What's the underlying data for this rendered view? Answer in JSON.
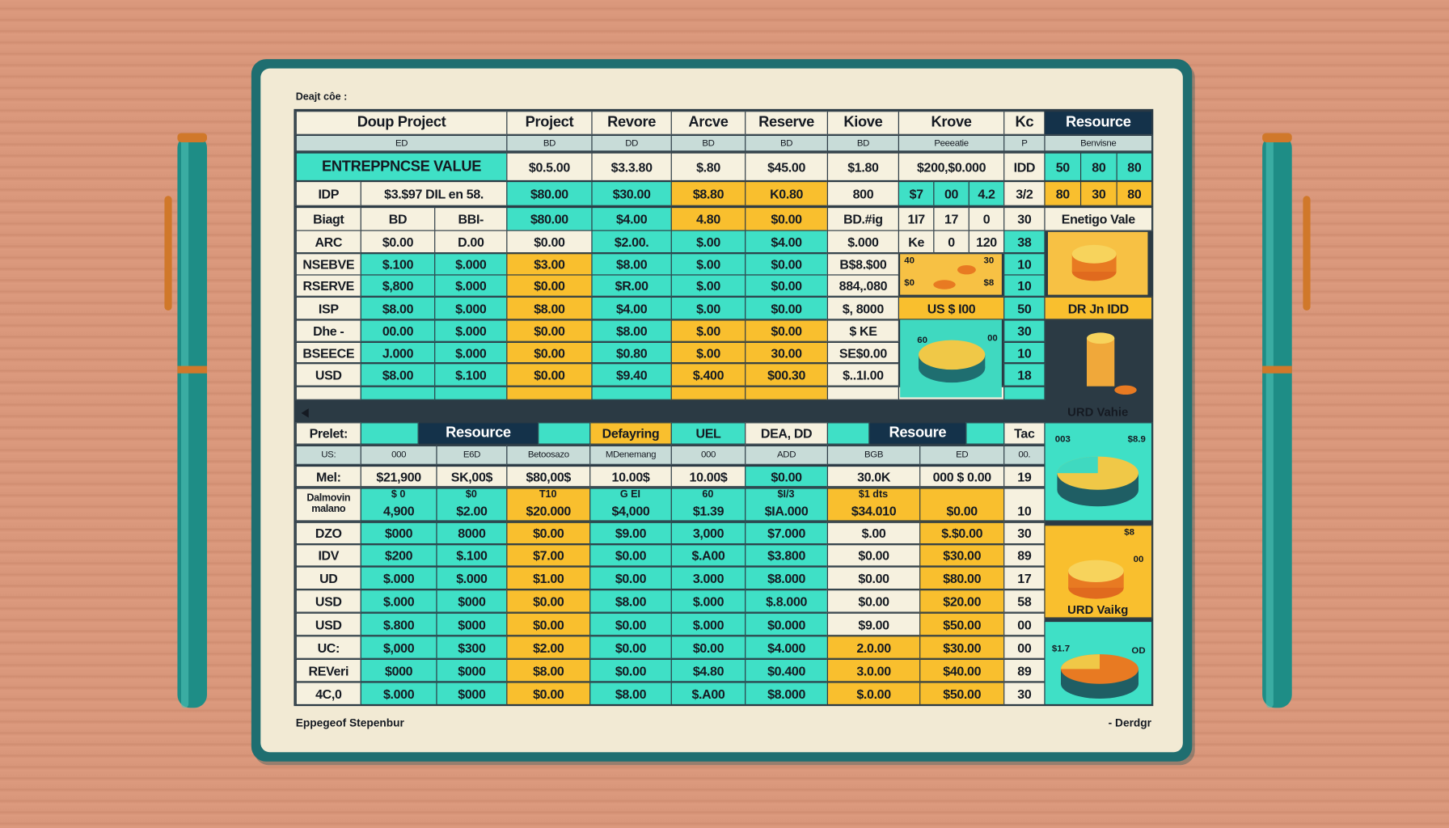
{
  "header": {
    "label": "Deajt côe :"
  },
  "top_table": {
    "header": [
      "Doup Project",
      "Project",
      "Revore",
      "Arcve",
      "Reserve",
      "Kiove",
      "Krove",
      "Kc",
      "Resource"
    ],
    "subheader": [
      "ED",
      "BD",
      "DD",
      "BD",
      "BD",
      "BD",
      "Peeeatie",
      "P",
      "Benvisne"
    ],
    "rows": [
      [
        "ENTREPPNCSE VALUE",
        "$0.5.00",
        "$3.3.80",
        "$.80",
        "$45.00",
        "$1.80",
        "$200,$0.000",
        "IDD",
        "50",
        "80",
        "80"
      ],
      [
        "IDP",
        "$3.$97 DIL en 58.",
        "$80.00",
        "$30.00",
        "$8.80",
        "K0.80",
        "800",
        "$7",
        "00",
        "4.2",
        "3/2",
        "80",
        "30",
        "80"
      ],
      [
        "Biagt",
        "BD",
        "BBI-",
        "$80.00",
        "$4.00",
        "4.80",
        "$0.00",
        "BD.#ig",
        "1I7",
        "17",
        "0",
        "30"
      ],
      [
        "ARC",
        "$0.00",
        "D.00",
        "$0.00",
        "$2.00.",
        "$.00",
        "$4.00",
        "$.000",
        "Ke",
        "0",
        "120",
        "38"
      ],
      [
        "NSEBVE",
        "$.100",
        "$.000",
        "$3.00",
        "$8.00",
        "$.00",
        "$0.00",
        "B$8.$00",
        "10"
      ],
      [
        "RSERVE",
        "$,800",
        "$.000",
        "$0.00",
        "$R.00",
        "$.00",
        "$0.00",
        "884,.080",
        "10"
      ],
      [
        "ISP",
        "$8.00",
        "$.000",
        "$8.00",
        "$4.00",
        "$.00",
        "$0.00",
        "$, 8000",
        "US  $  I00",
        "50"
      ],
      [
        "Dhe -",
        "00.00",
        "$.000",
        "$0.00",
        "$8.00",
        "$.00",
        "$0.00",
        "$ KE",
        "30"
      ],
      [
        "BSEECE",
        "J.000",
        "$.000",
        "$0.00",
        "$0.80",
        "$.00",
        "30.00",
        "SE$0.00",
        "10"
      ],
      [
        "USD",
        "$8.00",
        "$.100",
        "$0.00",
        "$9.40",
        "$.400",
        "$00.30",
        "$..1I.00",
        "18"
      ]
    ]
  },
  "top_side": {
    "labels": [
      "Enetigo Vale",
      "DR Jn IDD",
      "URD Vahie"
    ],
    "image_labels": [
      "40",
      "$0",
      "30",
      "$8",
      "60",
      "00"
    ]
  },
  "bottom_table": {
    "header": [
      "Prelet:",
      "Resource",
      "Defayring",
      "UEL",
      "DEA, DD",
      "Resoure",
      "Tac"
    ],
    "subheader": [
      "US:",
      "000",
      "E6D",
      "Betoosazo",
      "MDenemang",
      "000",
      "ADD",
      "BGB",
      "ED",
      "00."
    ],
    "rows": [
      [
        "Mel:",
        "$21,900",
        "SK,00$",
        "$80,00$",
        "10.00$",
        "10.00$",
        "$0.00",
        "30.0K",
        "000  $  0.00",
        "19"
      ],
      [
        "Dalmovin malano",
        "4,900",
        "$2.00",
        "$20.000",
        "$4,000",
        "$1.39",
        "$IA.000",
        "$34.010",
        "$0.00",
        "10"
      ],
      [
        "DZO",
        "$000",
        "8000",
        "$0.00",
        "$9.00",
        "3,000",
        "$7.000",
        "$.00",
        "$.$0.00",
        "30"
      ],
      [
        "IDV",
        "$200",
        "$.100",
        "$7.00",
        "$0.00",
        "$.A00",
        "$3.800",
        "$0.00",
        "$30.00",
        "89"
      ],
      [
        "UD",
        "$.000",
        "$.000",
        "$1.00",
        "$0.00",
        "3.000",
        "$8.000",
        "$0.00",
        "$80.00",
        "17"
      ],
      [
        "USD",
        "$.000",
        "$000",
        "$0.00",
        "$8.00",
        "$.000",
        "$.8.000",
        "$0.00",
        "$20.00",
        "58"
      ],
      [
        "USD",
        "$.800",
        "$000",
        "$0.00",
        "$0.00",
        "$.000",
        "$0.000",
        "$9.00",
        "$50.00",
        "00"
      ],
      [
        "UC:",
        "$,000",
        "$300",
        "$2.00",
        "$0.00",
        "$0.00",
        "$4.000",
        "2.0.00",
        "$30.00",
        "00"
      ],
      [
        "REVeri",
        "$000",
        "$000",
        "$8.00",
        "$0.00",
        "$4.80",
        "$0.400",
        "3.0.00",
        "$40.00",
        "89"
      ],
      [
        "4C,0",
        "$.000",
        "$000",
        "$0.00",
        "$8.00",
        "$.A00",
        "$8.000",
        "$.0.00",
        "$50.00",
        "30"
      ]
    ],
    "notes": [
      null,
      "$ 0",
      "$0",
      "T10",
      "G  EI",
      "60",
      "$I/3",
      "$1 dts",
      null,
      null
    ]
  },
  "bottom_side": {
    "labels": [
      "003",
      "$8.9",
      "$8",
      "00",
      "URD Vaikg",
      "$1.7",
      "OD"
    ]
  },
  "footer": {
    "left": "Eppegeof Stepenbur",
    "right": "- Derdgr"
  }
}
